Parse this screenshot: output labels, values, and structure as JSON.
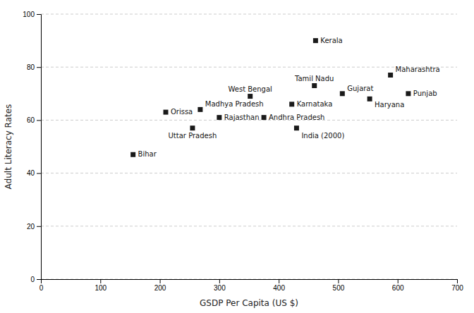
{
  "chart_data": {
    "type": "scatter",
    "xlabel": "GSDP Per Capita (US $)",
    "ylabel": "Adult Literacy Rates",
    "labels": [
      "Bihar",
      "Orissa",
      "Uttar Pradesh",
      "Madhya Pradesh",
      "Rajasthan",
      "West Bengal",
      "Andhra Pradesh",
      "Karnataka",
      "India (2000)",
      "Tamil Nadu",
      "Kerala",
      "Gujarat",
      "Haryana",
      "Maharashtra",
      "Punjab"
    ],
    "x": [
      155,
      210,
      255,
      268,
      300,
      352,
      375,
      422,
      430,
      460,
      462,
      507,
      553,
      588,
      618
    ],
    "values": [
      47,
      63,
      57,
      64,
      61,
      69,
      61,
      66,
      57,
      73,
      90,
      70,
      68,
      77,
      70
    ],
    "xlim": [
      0,
      700
    ],
    "ylim": [
      0,
      100
    ],
    "xticks": [
      0,
      100,
      200,
      300,
      400,
      500,
      600,
      700
    ],
    "yticks": [
      0,
      20,
      40,
      60,
      80,
      100
    ],
    "grid": true,
    "marker": "square",
    "color": "#1a1a1a"
  }
}
